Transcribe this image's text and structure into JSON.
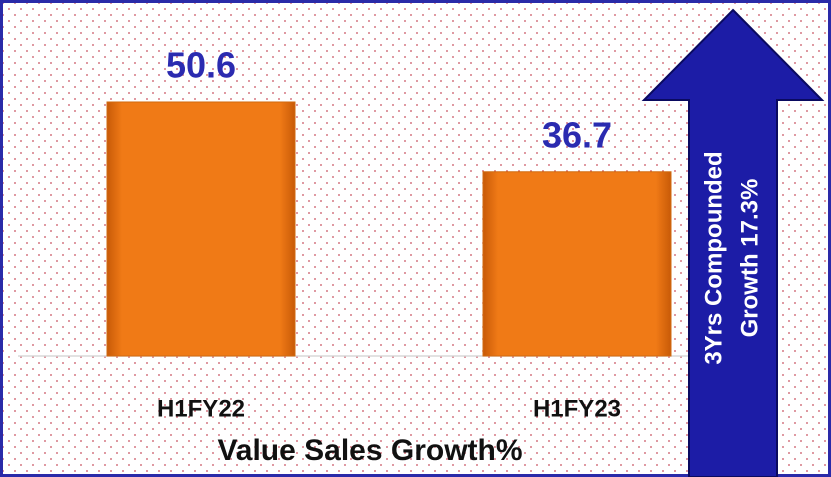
{
  "chart_data": {
    "type": "bar",
    "title": "Value Sales Growth%",
    "categories": [
      "H1FY22",
      "H1FY23"
    ],
    "values": [
      50.6,
      36.7
    ],
    "color": "#f07a16",
    "label_color": "#2b2bb0",
    "annotation": [
      "3Yrs Compounded",
      "Growth 17.3%"
    ],
    "annotation_color": "#1c1ca6"
  }
}
